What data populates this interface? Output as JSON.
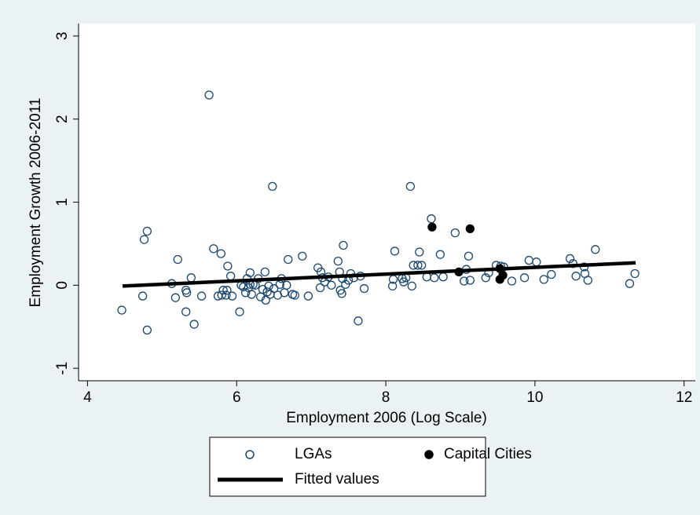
{
  "chart_data": {
    "type": "scatter",
    "x_label": "Employment 2006 (Log Scale)",
    "y_label": "Employment Growth 2006-2011",
    "xlim": [
      3.88,
      12.15
    ],
    "xticks": [
      4,
      6,
      8,
      10,
      12
    ],
    "ylim": [
      -1.15,
      3.15
    ],
    "yticks": [
      -1,
      0,
      1,
      2,
      3
    ],
    "legend": "bottom",
    "series": [
      {
        "name": "LGAs",
        "color": "#1a476f",
        "style": "hollow-circle",
        "x": [
          4.46,
          4.74,
          4.76,
          4.8,
          4.8,
          5.13,
          5.18,
          5.21,
          5.32,
          5.33,
          5.32,
          5.39,
          5.43,
          5.53,
          5.63,
          5.69,
          5.75,
          5.79,
          5.8,
          5.82,
          5.86,
          5.88,
          5.92,
          5.87,
          5.94,
          6.04,
          6.06,
          6.09,
          6.12,
          6.14,
          6.16,
          6.18,
          6.2,
          6.22,
          6.18,
          6.25,
          6.29,
          6.32,
          6.35,
          6.38,
          6.39,
          6.41,
          6.43,
          6.45,
          6.48,
          6.5,
          6.55,
          6.58,
          6.6,
          6.64,
          6.67,
          6.69,
          6.75,
          6.78,
          6.88,
          6.96,
          7.09,
          7.12,
          7.13,
          7.15,
          7.18,
          7.23,
          7.27,
          7.36,
          7.38,
          7.39,
          7.41,
          7.42,
          7.43,
          7.46,
          7.5,
          7.53,
          7.57,
          7.63,
          7.66,
          7.71,
          8.09,
          8.1,
          8.12,
          8.22,
          8.24,
          8.27,
          8.33,
          8.35,
          8.37,
          8.43,
          8.45,
          8.48,
          8.55,
          8.61,
          8.65,
          8.73,
          8.77,
          8.93,
          9.05,
          9.08,
          9.11,
          9.13,
          9.34,
          9.38,
          9.48,
          9.54,
          9.58,
          9.69,
          9.86,
          9.92,
          10.02,
          10.12,
          10.22,
          10.47,
          10.51,
          10.55,
          10.66,
          10.67,
          10.71,
          10.81,
          11.27,
          11.34
        ],
        "values": [
          -0.3,
          -0.13,
          0.55,
          0.65,
          -0.54,
          0.02,
          -0.15,
          0.31,
          -0.06,
          -0.09,
          -0.32,
          0.09,
          -0.47,
          -0.13,
          2.29,
          0.44,
          -0.13,
          0.38,
          -0.12,
          -0.06,
          -0.12,
          0.23,
          0.11,
          -0.06,
          -0.13,
          -0.32,
          0.0,
          -0.02,
          -0.09,
          0.08,
          -0.03,
          0.15,
          -0.11,
          0.01,
          0.01,
          0.0,
          0.08,
          -0.14,
          -0.05,
          0.16,
          -0.18,
          -0.08,
          -0.01,
          -0.11,
          1.19,
          -0.04,
          -0.12,
          0.01,
          0.08,
          -0.09,
          0.0,
          0.31,
          -0.11,
          -0.12,
          0.35,
          -0.13,
          0.21,
          -0.03,
          0.16,
          0.09,
          0.04,
          0.1,
          0.0,
          0.29,
          0.16,
          -0.06,
          -0.1,
          0.08,
          0.48,
          0.01,
          0.06,
          0.14,
          0.09,
          -0.43,
          0.11,
          -0.04,
          -0.01,
          0.07,
          0.41,
          0.08,
          0.04,
          0.09,
          1.19,
          -0.01,
          0.24,
          0.24,
          0.4,
          0.24,
          0.1,
          0.8,
          0.09,
          0.37,
          0.1,
          0.63,
          0.05,
          0.19,
          0.35,
          0.06,
          0.09,
          0.15,
          0.24,
          0.23,
          0.22,
          0.05,
          0.09,
          0.3,
          0.28,
          0.07,
          0.13,
          0.32,
          0.26,
          0.11,
          0.22,
          0.14,
          0.06,
          0.43,
          0.02,
          0.14
        ]
      },
      {
        "name": "Capital Cities",
        "color": "#000000",
        "style": "filled-circle",
        "x": [
          8.62,
          9.13,
          8.98,
          9.53,
          9.53,
          9.57
        ],
        "values": [
          0.7,
          0.68,
          0.16,
          0.2,
          0.07,
          0.12
        ]
      },
      {
        "name": "Fitted values",
        "color": "#000000",
        "style": "line",
        "x": [
          4.47,
          11.35
        ],
        "values": [
          -0.01,
          0.27
        ]
      }
    ]
  }
}
